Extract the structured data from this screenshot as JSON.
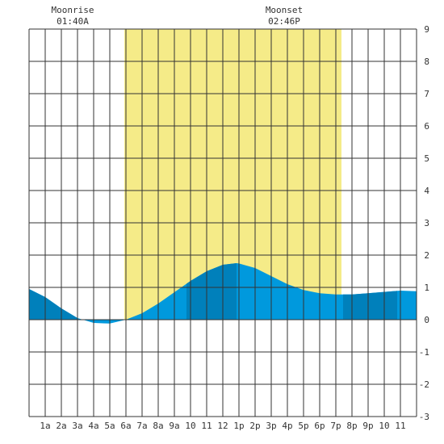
{
  "moon": {
    "moonrise_label": "Moonrise",
    "moonrise_time": "01:40A",
    "moonset_label": "Moonset",
    "moonset_time": "02:46P"
  },
  "chart_data": {
    "type": "area",
    "title": "",
    "xlabel": "",
    "ylabel": "",
    "x_range_hours": [
      0,
      24
    ],
    "ylim": [
      -3,
      9
    ],
    "grid": true,
    "x_tick_hours": [
      1,
      2,
      3,
      4,
      5,
      6,
      7,
      8,
      9,
      10,
      11,
      12,
      13,
      14,
      15,
      16,
      17,
      18,
      19,
      20,
      21,
      22,
      23
    ],
    "x_tick_labels": [
      "1a",
      "2a",
      "3a",
      "4a",
      "5a",
      "6a",
      "7a",
      "8a",
      "9a",
      "10",
      "11",
      "12",
      "1p",
      "2p",
      "3p",
      "4p",
      "5p",
      "6p",
      "7p",
      "8p",
      "9p",
      "10",
      "11"
    ],
    "y_ticks": [
      -3,
      -2,
      -1,
      0,
      1,
      2,
      3,
      4,
      5,
      6,
      7,
      8,
      9
    ],
    "daylight_hours": [
      5.9,
      19.35
    ],
    "moonrise_hour": 1.67,
    "moonset_hour": 14.77,
    "series": [
      {
        "x": [
          0,
          1,
          2,
          3,
          4,
          5,
          6,
          7,
          8,
          9,
          10,
          11,
          12,
          12.85,
          13,
          14,
          15,
          16,
          17,
          18,
          19,
          20,
          21,
          22,
          23,
          24
        ],
        "y": [
          0.95,
          0.7,
          0.35,
          0.05,
          -0.1,
          -0.12,
          0.0,
          0.2,
          0.5,
          0.85,
          1.2,
          1.5,
          1.7,
          1.75,
          1.74,
          1.6,
          1.35,
          1.1,
          0.92,
          0.82,
          0.78,
          0.78,
          0.82,
          0.86,
          0.9,
          0.88
        ]
      }
    ],
    "shade_bands_hours": [
      [
        0,
        3
      ],
      [
        9.75,
        12.85
      ],
      [
        19.45,
        22.8
      ]
    ],
    "colors": {
      "daylight": "#f5eb88",
      "tide_light": "#0099dd",
      "tide_dark": "#0080bb",
      "grid": "#333333",
      "label": "#333333"
    }
  }
}
